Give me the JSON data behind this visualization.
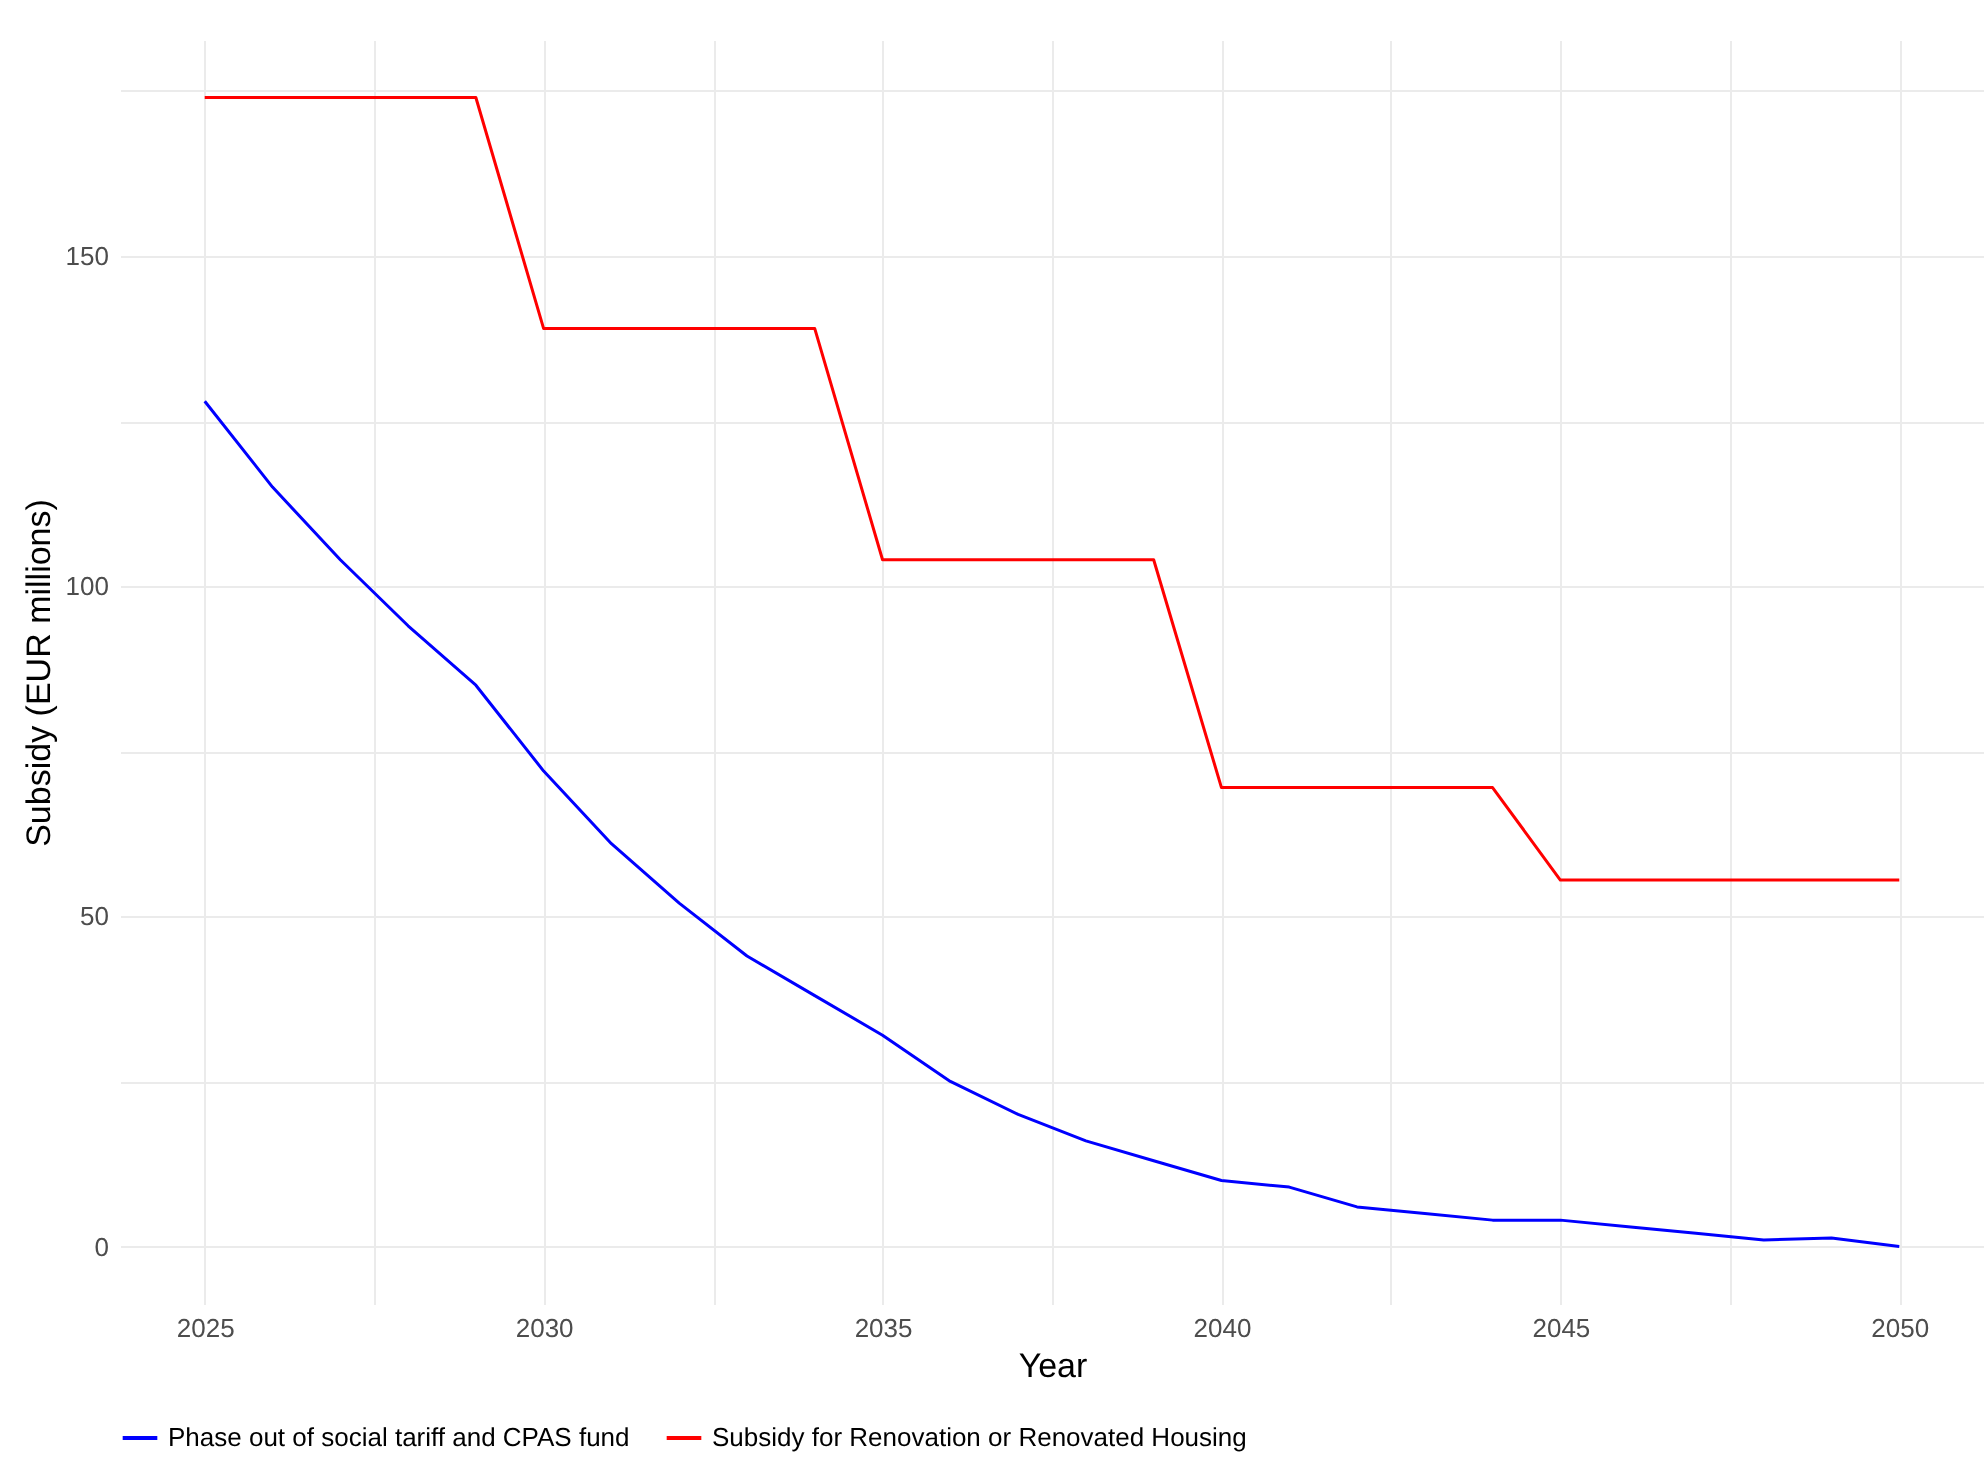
{
  "chart_data": {
    "type": "line",
    "xlabel": "Year",
    "ylabel": "Subsidy (EUR millions)",
    "x": [
      2025,
      2026,
      2027,
      2028,
      2029,
      2030,
      2031,
      2032,
      2033,
      2034,
      2035,
      2036,
      2037,
      2038,
      2039,
      2040,
      2041,
      2042,
      2043,
      2044,
      2045,
      2046,
      2047,
      2048,
      2049,
      2050
    ],
    "series": [
      {
        "name": "Phase out of social tariff and CPAS fund",
        "color": "#0000ff",
        "values": [
          128,
          115,
          104,
          94,
          85,
          72,
          61,
          52,
          44,
          38,
          32,
          25,
          20,
          16,
          13,
          10,
          9,
          6,
          5,
          4,
          4,
          3,
          2,
          1,
          1.3,
          0
        ]
      },
      {
        "name": "Subsidy for Renovation or Renovated Housing",
        "color": "#ff0000",
        "values": [
          174,
          174,
          174,
          174,
          174,
          139,
          139,
          139,
          139,
          139,
          104,
          104,
          104,
          104,
          104,
          69.5,
          69.5,
          69.5,
          69.5,
          69.5,
          55.5,
          55.5,
          55.5,
          55.5,
          55.5,
          55.5
        ]
      }
    ],
    "xlim": [
      2023.75,
      2051.25
    ],
    "xticks": [
      2025,
      {
        "value": 2027.5,
        "label": null
      },
      2030,
      {
        "value": 2032.5,
        "label": null
      },
      2035,
      {
        "value": 2037.5,
        "label": null
      },
      2040,
      {
        "value": 2042.5,
        "label": null
      },
      2045,
      {
        "value": 2047.5,
        "label": null
      },
      2050
    ],
    "ylim": [
      -8.7,
      182.7
    ],
    "yticks": [
      0,
      {
        "value": 25,
        "label": null
      },
      50,
      {
        "value": 75,
        "label": null
      },
      100,
      {
        "value": 125,
        "label": null
      },
      150,
      {
        "value": 175,
        "label": null
      }
    ],
    "grid": true,
    "legend": "bottom"
  }
}
